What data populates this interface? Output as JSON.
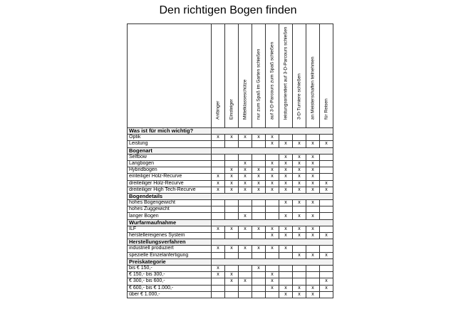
{
  "title": "Den richtigen Bogen finden",
  "columns": [
    "Anfänger",
    "Einsteiger",
    "Mittelklasseschütze",
    "nur zum Spaß im Garten schießen",
    "auf 3-D-Parcours zum Spaß schießen",
    "leistungsorientiert auf 3-D-Parcours schießen",
    "3-D-Turniere schießen",
    "an Meisterschaften teilnehmen",
    "für Reisen"
  ],
  "sections": [
    {
      "title": "Was ist für mich wichtig?",
      "rows": [
        {
          "label": "Optik",
          "marks": [
            "x",
            "x",
            "x",
            "x",
            "x",
            "",
            "",
            "",
            ""
          ]
        },
        {
          "label": "Leistung",
          "marks": [
            "",
            "",
            "",
            "",
            "x",
            "x",
            "x",
            "x",
            "x"
          ]
        }
      ]
    },
    {
      "title": "Bogenart",
      "rows": [
        {
          "label": "Selfbow",
          "marks": [
            "",
            "",
            "",
            "",
            "",
            "x",
            "x",
            "x",
            ""
          ]
        },
        {
          "label": "Langbogen",
          "marks": [
            "",
            "",
            "x",
            "",
            "x",
            "x",
            "x",
            "x",
            ""
          ]
        },
        {
          "label": "Hybridbogen",
          "marks": [
            "",
            "x",
            "x",
            "x",
            "x",
            "x",
            "x",
            "x",
            ""
          ]
        },
        {
          "label": "einteiliger Holz-Recurve",
          "marks": [
            "x",
            "x",
            "x",
            "x",
            "x",
            "x",
            "x",
            "x",
            ""
          ]
        },
        {
          "label": "dreiteiliger Holz-Recurve",
          "marks": [
            "x",
            "x",
            "x",
            "x",
            "x",
            "x",
            "x",
            "x",
            "x"
          ]
        },
        {
          "label": "dreiteiliger High Tech-Recurve",
          "marks": [
            "x",
            "x",
            "x",
            "x",
            "x",
            "x",
            "x",
            "x",
            "x"
          ]
        }
      ]
    },
    {
      "title": "Bogendetails",
      "rows": [
        {
          "label": "hohes Bogengewicht",
          "marks": [
            "",
            "",
            "",
            "",
            "",
            "x",
            "x",
            "x",
            ""
          ]
        },
        {
          "label": "hohes Zuggewicht",
          "marks": [
            "",
            "",
            "",
            "",
            "",
            "",
            "",
            "",
            ""
          ]
        },
        {
          "label": "langer Bogen",
          "marks": [
            "",
            "",
            "x",
            "",
            "",
            "x",
            "x",
            "x",
            ""
          ]
        }
      ]
    },
    {
      "title": "Wurfarmaufnahme",
      "rows": [
        {
          "label": "ILF",
          "marks": [
            "x",
            "x",
            "x",
            "x",
            "x",
            "x",
            "x",
            "x",
            ""
          ]
        },
        {
          "label": "herstellereigenes System",
          "marks": [
            "",
            "",
            "",
            "",
            "x",
            "x",
            "x",
            "x",
            "x"
          ]
        }
      ]
    },
    {
      "title": "Herstellungsverfahren",
      "rows": [
        {
          "label": "industriell produziert",
          "marks": [
            "x",
            "x",
            "x",
            "x",
            "x",
            "x",
            "",
            "",
            ""
          ]
        },
        {
          "label": "spezielle Einzelanfertigung",
          "marks": [
            "",
            "",
            "",
            "",
            "",
            "",
            "x",
            "x",
            "x"
          ]
        }
      ]
    },
    {
      "title": "Preiskategorie",
      "rows": [
        {
          "label": "bis € 150,-",
          "marks": [
            "x",
            "",
            "",
            "x",
            "",
            "",
            "",
            "",
            ""
          ]
        },
        {
          "label": "€ 150,- bis 300,-",
          "marks": [
            "x",
            "x",
            "",
            "",
            "x",
            "",
            "",
            "",
            ""
          ]
        },
        {
          "label": "€ 300,- bis 600,-",
          "marks": [
            "",
            "x",
            "x",
            "",
            "x",
            "",
            "",
            "",
            "x"
          ]
        },
        {
          "label": "€ 600,- bis € 1.000,-",
          "marks": [
            "",
            "",
            "",
            "",
            "x",
            "x",
            "x",
            "x",
            "x"
          ]
        },
        {
          "label": "über € 1.000,-",
          "marks": [
            "",
            "",
            "",
            "",
            "",
            "x",
            "x",
            "x",
            ""
          ]
        }
      ]
    }
  ]
}
